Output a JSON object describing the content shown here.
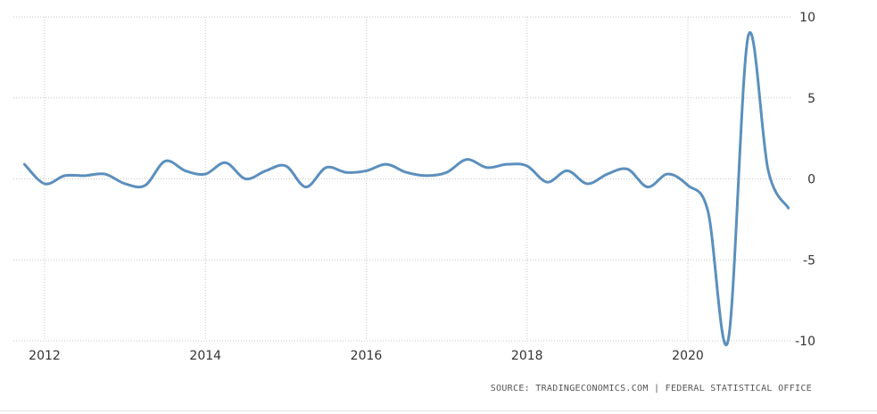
{
  "chart_data": {
    "type": "line",
    "x_ticks": [
      "2012",
      "2014",
      "2016",
      "2018",
      "2020"
    ],
    "y_ticks": [
      10,
      5,
      0,
      -5,
      -10
    ],
    "ylim": [
      -10,
      10
    ],
    "xlim": [
      2011.7,
      2021.45
    ],
    "grid": true,
    "line_color": "#5b8fbd",
    "series": [
      {
        "x": [
          2011.75,
          2012.0,
          2012.25,
          2012.5,
          2012.75,
          2013.0,
          2013.25,
          2013.5,
          2013.75,
          2014.0,
          2014.25,
          2014.5,
          2014.75,
          2015.0,
          2015.25,
          2015.5,
          2015.75,
          2016.0,
          2016.25,
          2016.5,
          2016.75,
          2017.0,
          2017.25,
          2017.5,
          2017.75,
          2018.0,
          2018.25,
          2018.5,
          2018.75,
          2019.0,
          2019.25,
          2019.5,
          2019.75,
          2020.0,
          2020.25,
          2020.5,
          2020.75,
          2021.0,
          2021.25
        ],
        "y": [
          0.9,
          -0.3,
          0.2,
          0.2,
          0.3,
          -0.3,
          -0.4,
          1.1,
          0.5,
          0.3,
          1.0,
          0.0,
          0.5,
          0.8,
          -0.5,
          0.7,
          0.4,
          0.5,
          0.9,
          0.4,
          0.2,
          0.4,
          1.2,
          0.7,
          0.9,
          0.8,
          -0.2,
          0.5,
          -0.3,
          0.3,
          0.6,
          -0.5,
          0.3,
          -0.4,
          -2.0,
          -10.0,
          8.8,
          0.5,
          -1.8
        ]
      }
    ]
  },
  "source_text": "SOURCE: TRADINGECONOMICS.COM | FEDERAL STATISTICAL OFFICE"
}
